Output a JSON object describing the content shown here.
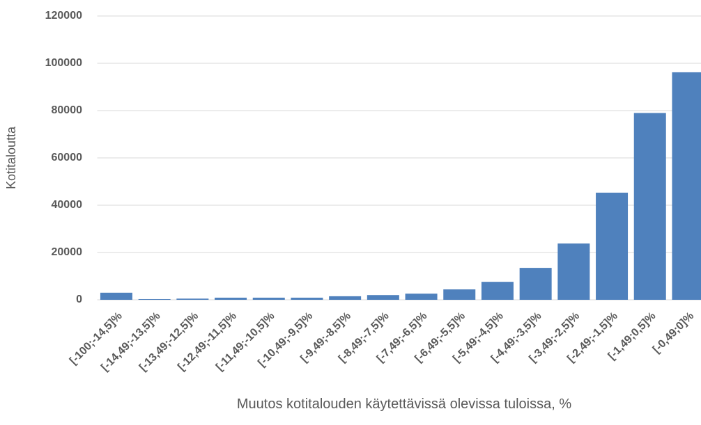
{
  "chart_data": {
    "type": "bar",
    "xlabel": "Muutos kotitalouden käytettävissä olevissa tuloissa, %",
    "ylabel": "Kotitaloutta",
    "categories": [
      "[-100;-14,5]%",
      "[-14,49;-13,5]%",
      "[-13,49;-12,5]%",
      "[-12,49;-11,5]%",
      "[-11,49;-10,5]%",
      "[-10,49;-9,5]%",
      "[-9,49;-8,5]%",
      "[-8,49;-7,5]%",
      "[-7,49;-6,5]%",
      "[-6,49;-5,5]%",
      "[-5,49;-4,5]%",
      "[-4,49;-3,5]%",
      "[-3,49;-2,5]%",
      "[-2,49;-1,5]%",
      "[-1,49;0,5]%",
      "[-0,49;0]%"
    ],
    "values": [
      3000,
      300,
      500,
      900,
      900,
      900,
      1500,
      2000,
      2600,
      4400,
      7600,
      13500,
      23800,
      45300,
      79000,
      96200
    ],
    "color": "#4f81bd",
    "ylim": [
      0,
      120000
    ],
    "yticks": [
      0,
      20000,
      40000,
      60000,
      80000,
      100000,
      120000
    ],
    "grid": true
  }
}
